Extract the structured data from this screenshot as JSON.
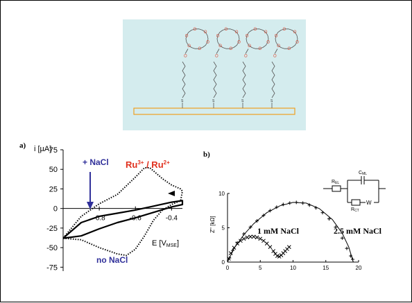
{
  "scheme": {
    "atom_O": "O",
    "atom_S": "S",
    "colors": {
      "background": "#d4ecee",
      "oxygen": "#e0503a",
      "chain": "#555555",
      "electrode": "#f0a020"
    }
  },
  "panel_a": {
    "label": "a)",
    "y_title": "i [µA]",
    "x_title": "E [V",
    "x_title_sub": "MSE",
    "x_title_end": "]",
    "yticks": [
      "75",
      "50",
      "25",
      "0",
      "-25",
      "-50",
      "-75"
    ],
    "xticks": [
      "-0.8",
      "-0.6",
      "-0.4"
    ],
    "ann_ru": "Ru",
    "ann_ru_sup1": "3+",
    "ann_ru_mid": " / Ru",
    "ann_ru_sup2": "2+",
    "ann_plus_nacl": "+ NaCl",
    "ann_no_nacl": "no NaCl",
    "colors": {
      "red": "#e0301e",
      "blue": "#30309a"
    }
  },
  "panel_b": {
    "label": "b)",
    "y_title": "Z'' [kΩ]",
    "yticks": [
      "10",
      "5",
      "0"
    ],
    "xticks": [
      "0",
      "5",
      "10",
      "15",
      "20"
    ],
    "ann_1mm": "1 mM NaCl",
    "ann_25mm": "2.5 mM NaCl",
    "circuit": {
      "r_el": "R",
      "r_el_sub": "EL",
      "c_ml": "C",
      "c_ml_sub": "ML",
      "r_ct": "R",
      "r_ct_sub": "CT",
      "w": "W"
    }
  },
  "chart_data": [
    {
      "type": "line",
      "title": "",
      "xlabel": "E [V MSE]",
      "ylabel": "i [µA]",
      "xlim": [
        -1.0,
        -0.34
      ],
      "ylim": [
        -80,
        75
      ],
      "series": [
        {
          "name": "no NaCl",
          "style": "dotted",
          "x": [
            -1.0,
            -0.9,
            -0.8,
            -0.7,
            -0.65,
            -0.6,
            -0.55,
            -0.5,
            -0.45,
            -0.4,
            -0.35,
            -0.34,
            -0.35,
            -0.4,
            -0.45,
            -0.5,
            -0.52,
            -0.55,
            -0.6,
            -0.7,
            -0.8,
            -0.9,
            -1.0
          ],
          "y": [
            -38,
            -40,
            -50,
            -58,
            -60,
            -52,
            -35,
            -15,
            -2,
            5,
            10,
            22,
            25,
            30,
            38,
            48,
            52,
            52,
            40,
            18,
            6,
            -10,
            -38
          ]
        },
        {
          "name": "+ NaCl",
          "style": "solid",
          "x": [
            -1.0,
            -0.9,
            -0.8,
            -0.7,
            -0.6,
            -0.5,
            -0.4,
            -0.34,
            -0.34,
            -0.4,
            -0.5,
            -0.6,
            -0.7,
            -0.8,
            -0.9,
            -1.0
          ],
          "y": [
            -38,
            -35,
            -26,
            -18,
            -12,
            -5,
            2,
            5,
            10,
            8,
            3,
            -2,
            -6,
            -10,
            -18,
            -38
          ]
        }
      ]
    },
    {
      "type": "scatter",
      "title": "",
      "xlabel": "",
      "ylabel": "Z'' [kΩ]",
      "xlim": [
        0,
        20
      ],
      "ylim": [
        0,
        10
      ],
      "series": [
        {
          "name": "1 mM NaCl",
          "marker": "x",
          "x": [
            0.2,
            0.5,
            1.0,
            1.5,
            2.0,
            2.5,
            3.0,
            3.5,
            4.0,
            4.5,
            5.0,
            5.5,
            6.0,
            6.5,
            7.0,
            7.3,
            7.6,
            7.9,
            8.2,
            8.5,
            8.8,
            9.1,
            9.4
          ],
          "y": [
            0.5,
            1.3,
            2.1,
            2.7,
            3.1,
            3.4,
            3.6,
            3.7,
            3.7,
            3.6,
            3.4,
            3.1,
            2.7,
            2.2,
            1.6,
            1.2,
            0.9,
            0.8,
            1.0,
            1.3,
            1.6,
            1.9,
            2.2
          ]
        },
        {
          "name": "2.5 mM NaCl",
          "marker": "+",
          "x": [
            0.3,
            0.8,
            1.5,
            2.5,
            3.5,
            4.5,
            5.5,
            6.5,
            7.5,
            8.5,
            9.5,
            10.5,
            11.5,
            12.5,
            13.5,
            14.5,
            15.5,
            16.5,
            17.5,
            18.2,
            18.8,
            19.1
          ],
          "y": [
            0.6,
            1.7,
            2.8,
            4.1,
            5.1,
            6.0,
            6.8,
            7.5,
            8.0,
            8.4,
            8.6,
            8.7,
            8.6,
            8.3,
            7.9,
            7.2,
            6.3,
            5.1,
            3.5,
            2.0,
            0.9,
            0.4
          ]
        },
        {
          "name": "",
          "style": "fit",
          "x": [
            0.0,
            1.0,
            2.5,
            4.0,
            6.0,
            8.0,
            10.0,
            12.0,
            14.0,
            16.0,
            17.5,
            18.5,
            19.2
          ],
          "y": [
            0.0,
            2.0,
            4.0,
            5.6,
            7.2,
            8.2,
            8.7,
            8.6,
            7.8,
            6.2,
            4.2,
            2.2,
            0.0
          ]
        }
      ]
    }
  ]
}
